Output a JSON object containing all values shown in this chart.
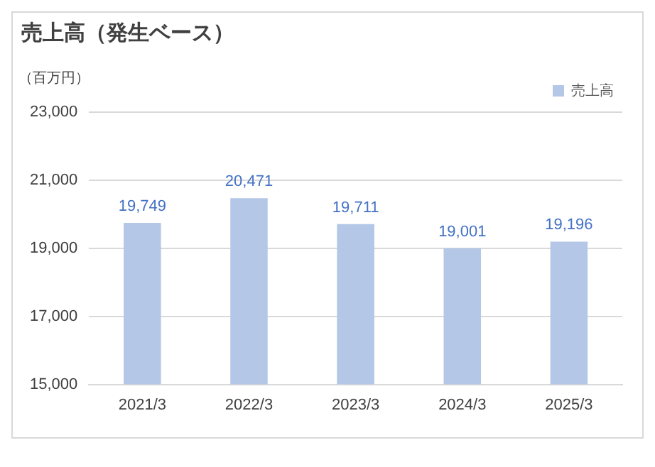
{
  "chart_data": {
    "type": "bar",
    "title": "売上高（発生ベース）",
    "ylabel": "（百万円）",
    "categories": [
      "2021/3",
      "2022/3",
      "2023/3",
      "2024/3",
      "2025/3"
    ],
    "series": [
      {
        "name": "売上高",
        "color": "#b4c7e7",
        "values": [
          19749,
          20471,
          19711,
          19001,
          19196
        ],
        "value_labels": [
          "19,749",
          "20,471",
          "19,711",
          "19,001",
          "19,196"
        ]
      }
    ],
    "ylim": [
      15000,
      23000
    ],
    "yticks": [
      {
        "value": 15000,
        "label": "15,000"
      },
      {
        "value": 17000,
        "label": "17,000"
      },
      {
        "value": 19000,
        "label": "19,000"
      },
      {
        "value": 21000,
        "label": "21,000"
      },
      {
        "value": 23000,
        "label": "23,000"
      }
    ],
    "grid": "y",
    "legend": "top right"
  }
}
